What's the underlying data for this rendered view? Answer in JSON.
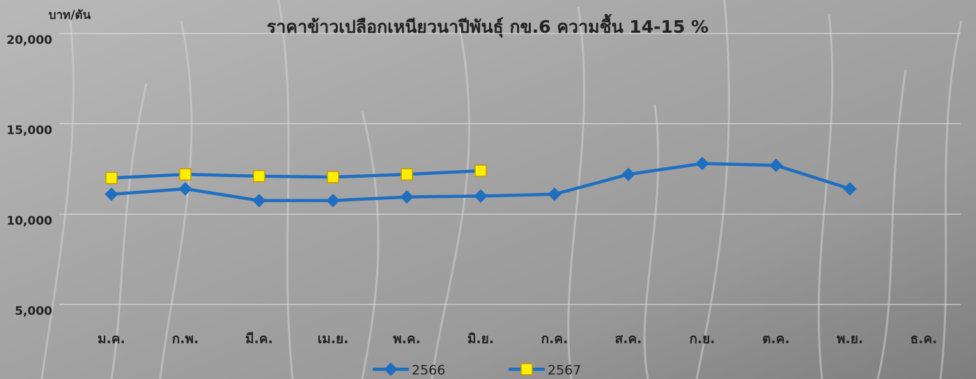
{
  "chart_data": {
    "type": "line",
    "title": "ราคาข้าวเปลือกเหนียวนาปีพันธุ์ กข.6 ความชื้น 14-15 %",
    "y_label": "บาท/ตัน",
    "categories": [
      "ม.ค.",
      "ก.พ.",
      "มี.ค.",
      "เม.ย.",
      "พ.ค.",
      "มิ.ย.",
      "ก.ค.",
      "ส.ค.",
      "ก.ย.",
      "ต.ค.",
      "พ.ย.",
      "ธ.ค."
    ],
    "series": [
      {
        "name": "2566",
        "color": "#1f6fc0",
        "marker": "diamond",
        "marker_color": "#1f6fc0",
        "values": [
          11100,
          11400,
          10750,
          10750,
          10950,
          11000,
          11100,
          12200,
          12800,
          12700,
          11400,
          null
        ]
      },
      {
        "name": "2567",
        "color": "#1f6fc0",
        "marker": "square",
        "marker_color": "#ffee00",
        "values": [
          12000,
          12200,
          12100,
          12050,
          12200,
          12400,
          null,
          null,
          null,
          null,
          null,
          null
        ]
      }
    ],
    "ylim": [
      5000,
      20000
    ],
    "yticks": [
      {
        "value": 5000,
        "label": "5,000"
      },
      {
        "value": 10000,
        "label": "10,000"
      },
      {
        "value": 15000,
        "label": "15,000"
      },
      {
        "value": 20000,
        "label": "20,000"
      }
    ],
    "grid": true,
    "legend": "bottom"
  }
}
